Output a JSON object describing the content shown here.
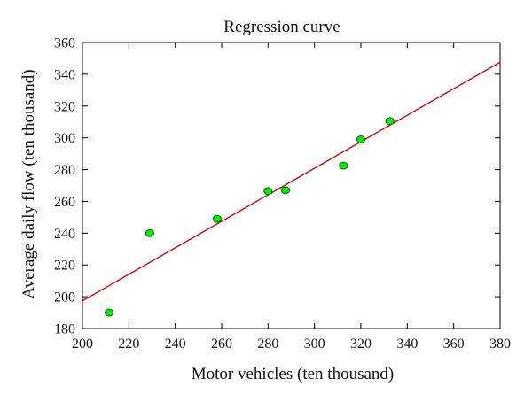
{
  "chart_data": {
    "type": "scatter",
    "title": "Regression curve",
    "xlabel": "Motor vehicles (ten thousand)",
    "ylabel": "Average daily flow (ten thousand)",
    "xlim": [
      200,
      380
    ],
    "ylim": [
      180,
      360
    ],
    "xticks": [
      200,
      220,
      240,
      260,
      280,
      300,
      320,
      340,
      360,
      380
    ],
    "yticks": [
      180,
      200,
      220,
      240,
      260,
      280,
      300,
      320,
      340,
      360
    ],
    "grid": false,
    "points": {
      "x": [
        211.5,
        229,
        258,
        280,
        287.5,
        312.5,
        320,
        332.5
      ],
      "y": [
        190,
        240,
        249,
        266.5,
        267,
        282.5,
        299,
        310.5
      ],
      "color": "#00ee00",
      "edge_color": "#006600"
    },
    "regression_line": {
      "x": [
        200,
        380
      ],
      "y": [
        197.4,
        347.6
      ],
      "color": "#dd0000"
    }
  }
}
